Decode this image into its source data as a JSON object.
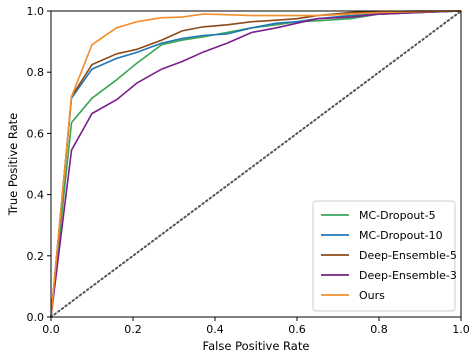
{
  "chart_data": {
    "type": "line",
    "title": "",
    "xlabel": "False Positive Rate",
    "ylabel": "True Positive Rate",
    "xlim": [
      0,
      1
    ],
    "ylim": [
      0,
      1
    ],
    "xticks": [
      "0.0",
      "0.2",
      "0.4",
      "0.6",
      "0.8",
      "1.0"
    ],
    "yticks": [
      "0.0",
      "0.2",
      "0.4",
      "0.6",
      "0.8",
      "1.0"
    ],
    "grid": false,
    "legend_position": "lower-right",
    "diagonal": {
      "style": "dotted",
      "color": "#555555",
      "points": [
        [
          0,
          0
        ],
        [
          1,
          1
        ]
      ]
    },
    "series": [
      {
        "name": "MC-Dropout-5",
        "color": "#3aa655",
        "points": [
          [
            0,
            0
          ],
          [
            0.05,
            0.635
          ],
          [
            0.1,
            0.715
          ],
          [
            0.16,
            0.775
          ],
          [
            0.21,
            0.83
          ],
          [
            0.27,
            0.89
          ],
          [
            0.32,
            0.905
          ],
          [
            0.37,
            0.915
          ],
          [
            0.43,
            0.93
          ],
          [
            0.49,
            0.945
          ],
          [
            0.55,
            0.955
          ],
          [
            0.6,
            0.965
          ],
          [
            0.65,
            0.968
          ],
          [
            0.73,
            0.975
          ],
          [
            0.8,
            0.99
          ],
          [
            0.9,
            0.995
          ],
          [
            1,
            1
          ]
        ]
      },
      {
        "name": "MC-Dropout-10",
        "color": "#1f77b4",
        "points": [
          [
            0,
            0
          ],
          [
            0.05,
            0.715
          ],
          [
            0.1,
            0.81
          ],
          [
            0.16,
            0.845
          ],
          [
            0.21,
            0.865
          ],
          [
            0.27,
            0.895
          ],
          [
            0.32,
            0.91
          ],
          [
            0.37,
            0.92
          ],
          [
            0.43,
            0.925
          ],
          [
            0.49,
            0.945
          ],
          [
            0.55,
            0.96
          ],
          [
            0.6,
            0.965
          ],
          [
            0.65,
            0.975
          ],
          [
            0.73,
            0.985
          ],
          [
            0.8,
            0.99
          ],
          [
            0.9,
            0.995
          ],
          [
            1,
            1
          ]
        ]
      },
      {
        "name": "Deep-Ensemble-5",
        "color": "#8c4a1a",
        "points": [
          [
            0,
            0
          ],
          [
            0.05,
            0.72
          ],
          [
            0.1,
            0.825
          ],
          [
            0.16,
            0.86
          ],
          [
            0.21,
            0.875
          ],
          [
            0.27,
            0.905
          ],
          [
            0.32,
            0.935
          ],
          [
            0.37,
            0.948
          ],
          [
            0.43,
            0.955
          ],
          [
            0.49,
            0.965
          ],
          [
            0.55,
            0.97
          ],
          [
            0.6,
            0.975
          ],
          [
            0.65,
            0.985
          ],
          [
            0.73,
            0.995
          ],
          [
            0.8,
            0.998
          ],
          [
            0.9,
            1.0
          ],
          [
            1,
            1
          ]
        ]
      },
      {
        "name": "Deep-Ensemble-3",
        "color": "#7b1f8a",
        "points": [
          [
            0,
            0
          ],
          [
            0.05,
            0.545
          ],
          [
            0.1,
            0.665
          ],
          [
            0.16,
            0.71
          ],
          [
            0.21,
            0.765
          ],
          [
            0.27,
            0.81
          ],
          [
            0.32,
            0.835
          ],
          [
            0.37,
            0.865
          ],
          [
            0.43,
            0.895
          ],
          [
            0.49,
            0.93
          ],
          [
            0.55,
            0.945
          ],
          [
            0.6,
            0.96
          ],
          [
            0.65,
            0.975
          ],
          [
            0.73,
            0.98
          ],
          [
            0.8,
            0.99
          ],
          [
            0.9,
            0.995
          ],
          [
            1,
            1
          ]
        ]
      },
      {
        "name": "Ours",
        "color": "#f28e2b",
        "points": [
          [
            0,
            0
          ],
          [
            0.05,
            0.72
          ],
          [
            0.1,
            0.89
          ],
          [
            0.16,
            0.945
          ],
          [
            0.21,
            0.965
          ],
          [
            0.27,
            0.978
          ],
          [
            0.32,
            0.98
          ],
          [
            0.37,
            0.99
          ],
          [
            0.43,
            0.988
          ],
          [
            0.49,
            0.985
          ],
          [
            0.55,
            0.985
          ],
          [
            0.6,
            0.985
          ],
          [
            0.65,
            0.985
          ],
          [
            0.73,
            0.99
          ],
          [
            0.8,
            0.995
          ],
          [
            0.9,
            0.998
          ],
          [
            1,
            1
          ]
        ]
      }
    ]
  }
}
